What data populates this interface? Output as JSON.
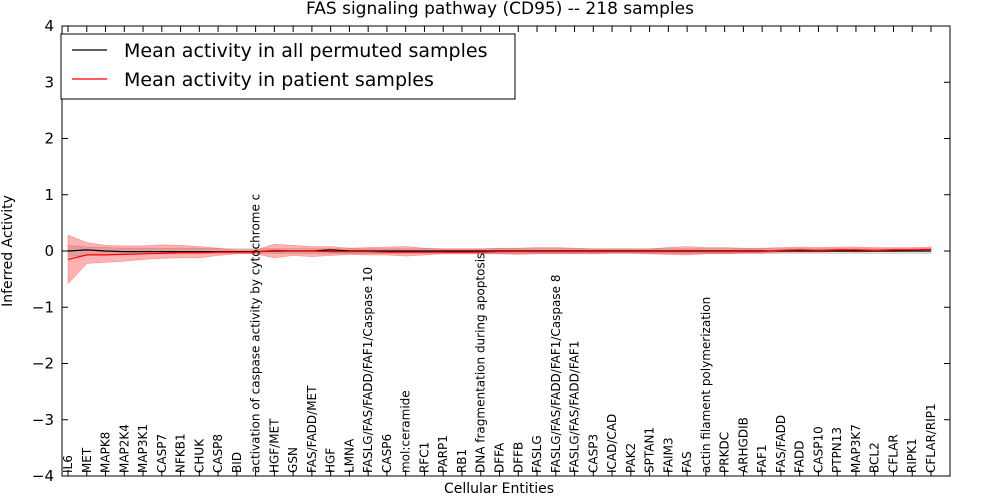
{
  "chart_data": {
    "type": "line",
    "title": "FAS signaling pathway (CD95) -- 218 samples",
    "xlabel": "Cellular Entities",
    "ylabel": "Inferred Activity",
    "ylim": [
      -4,
      4
    ],
    "yticks": [
      "4",
      "3",
      "2",
      "1",
      "0",
      "−1",
      "−2",
      "−3",
      "−4"
    ],
    "ytick_values": [
      4,
      3,
      2,
      1,
      0,
      -1,
      -2,
      -3,
      -4
    ],
    "grid": false,
    "legend_position": "top-left",
    "categories": [
      "IL6",
      "MET",
      "MAPK8",
      "MAP2K4",
      "MAP3K1",
      "CASP7",
      "NFKB1",
      "CHUK",
      "CASP8",
      "BID",
      "activation of caspase activity by cytochrome c",
      "HGF/MET",
      "GSN",
      "FAS/FADD/MET",
      "HGF",
      "LMNA",
      "FASLG/FAS/FADD/FAF1/Caspase 10",
      "CASP6",
      "mol:ceramide",
      "RFC1",
      "PARP1",
      "RB1",
      "DNA fragmentation during apoptosis",
      "DFFA",
      "DFFB",
      "FASLG",
      "FASLG/FAS/FADD/FAF1/Caspase 8",
      "FASLG/FAS/FADD/FAF1",
      "CASP3",
      "ICAD/CAD",
      "PAK2",
      "SPTAN1",
      "FAIM3",
      "FAS",
      "actin filament polymerization",
      "PRKDC",
      "ARHGDIB",
      "FAF1",
      "FAS/FADD",
      "FADD",
      "CASP10",
      "PTPN13",
      "MAP3K7",
      "BCL2",
      "CFLAR",
      "RIPK1",
      "CFLAR/RIP1"
    ],
    "series": [
      {
        "name": "Mean activity in all permuted samples",
        "color": "#000000",
        "values": [
          0.0,
          0.02,
          0.0,
          -0.01,
          -0.01,
          -0.01,
          -0.01,
          -0.01,
          -0.01,
          -0.01,
          -0.01,
          0.0,
          0.0,
          0.0,
          0.02,
          0.0,
          0.0,
          0.0,
          0.0,
          0.0,
          0.0,
          0.0,
          0.0,
          0.0,
          0.0,
          0.0,
          0.0,
          0.0,
          0.0,
          0.0,
          0.0,
          0.0,
          0.0,
          0.0,
          0.0,
          0.0,
          0.0,
          0.0,
          0.0,
          0.0,
          0.0,
          0.0,
          0.0,
          0.0,
          0.0,
          0.0,
          0.0
        ],
        "band_lower": [
          -0.1,
          -0.07,
          -0.06,
          -0.05,
          -0.05,
          -0.05,
          -0.05,
          -0.05,
          -0.04,
          -0.04,
          -0.04,
          -0.04,
          -0.04,
          -0.04,
          -0.04,
          -0.04,
          -0.04,
          -0.04,
          -0.04,
          -0.04,
          -0.04,
          -0.04,
          -0.04,
          -0.04,
          -0.04,
          -0.04,
          -0.04,
          -0.04,
          -0.04,
          -0.04,
          -0.04,
          -0.04,
          -0.04,
          -0.04,
          -0.04,
          -0.04,
          -0.04,
          -0.04,
          -0.04,
          -0.04,
          -0.04,
          -0.04,
          -0.04,
          -0.04,
          -0.04,
          -0.04,
          -0.04
        ],
        "band_upper": [
          0.1,
          0.07,
          0.06,
          0.05,
          0.05,
          0.05,
          0.05,
          0.05,
          0.04,
          0.04,
          0.04,
          0.04,
          0.04,
          0.04,
          0.04,
          0.04,
          0.04,
          0.04,
          0.04,
          0.04,
          0.04,
          0.04,
          0.04,
          0.04,
          0.04,
          0.04,
          0.04,
          0.04,
          0.04,
          0.04,
          0.04,
          0.04,
          0.04,
          0.04,
          0.04,
          0.04,
          0.04,
          0.04,
          0.04,
          0.04,
          0.04,
          0.04,
          0.04,
          0.04,
          0.04,
          0.04,
          0.04
        ]
      },
      {
        "name": "Mean activity in patient samples",
        "color": "#ff0000",
        "values": [
          -0.15,
          -0.07,
          -0.07,
          -0.06,
          -0.05,
          -0.04,
          -0.03,
          -0.03,
          -0.02,
          -0.02,
          -0.02,
          0.01,
          0.0,
          0.0,
          -0.01,
          -0.01,
          -0.01,
          -0.02,
          -0.02,
          -0.02,
          -0.02,
          -0.02,
          -0.02,
          -0.01,
          -0.01,
          -0.01,
          -0.01,
          -0.01,
          -0.01,
          -0.01,
          -0.01,
          -0.01,
          -0.01,
          -0.01,
          -0.01,
          -0.01,
          -0.01,
          -0.01,
          0.01,
          0.02,
          0.01,
          0.02,
          0.02,
          0.01,
          0.02,
          0.02,
          0.03
        ],
        "band_lower": [
          -0.58,
          -0.22,
          -0.2,
          -0.18,
          -0.15,
          -0.13,
          -0.12,
          -0.12,
          -0.08,
          -0.05,
          -0.05,
          -0.12,
          -0.08,
          -0.1,
          -0.08,
          -0.06,
          -0.07,
          -0.07,
          -0.09,
          -0.07,
          -0.05,
          -0.05,
          -0.05,
          -0.05,
          -0.06,
          -0.05,
          -0.05,
          -0.05,
          -0.05,
          -0.04,
          -0.04,
          -0.05,
          -0.06,
          -0.07,
          -0.05,
          -0.05,
          -0.04,
          -0.04,
          -0.02,
          -0.02,
          -0.02,
          -0.01,
          -0.02,
          -0.01,
          -0.01,
          0.0,
          0.0
        ],
        "band_upper": [
          0.28,
          0.15,
          0.1,
          0.09,
          0.09,
          0.11,
          0.1,
          0.08,
          0.05,
          0.02,
          0.02,
          0.12,
          0.1,
          0.08,
          0.08,
          0.05,
          0.06,
          0.07,
          0.08,
          0.05,
          0.04,
          0.04,
          0.04,
          0.05,
          0.05,
          0.06,
          0.06,
          0.05,
          0.04,
          0.04,
          0.04,
          0.04,
          0.06,
          0.08,
          0.06,
          0.06,
          0.05,
          0.05,
          0.06,
          0.07,
          0.06,
          0.07,
          0.07,
          0.06,
          0.06,
          0.06,
          0.07
        ]
      }
    ]
  }
}
